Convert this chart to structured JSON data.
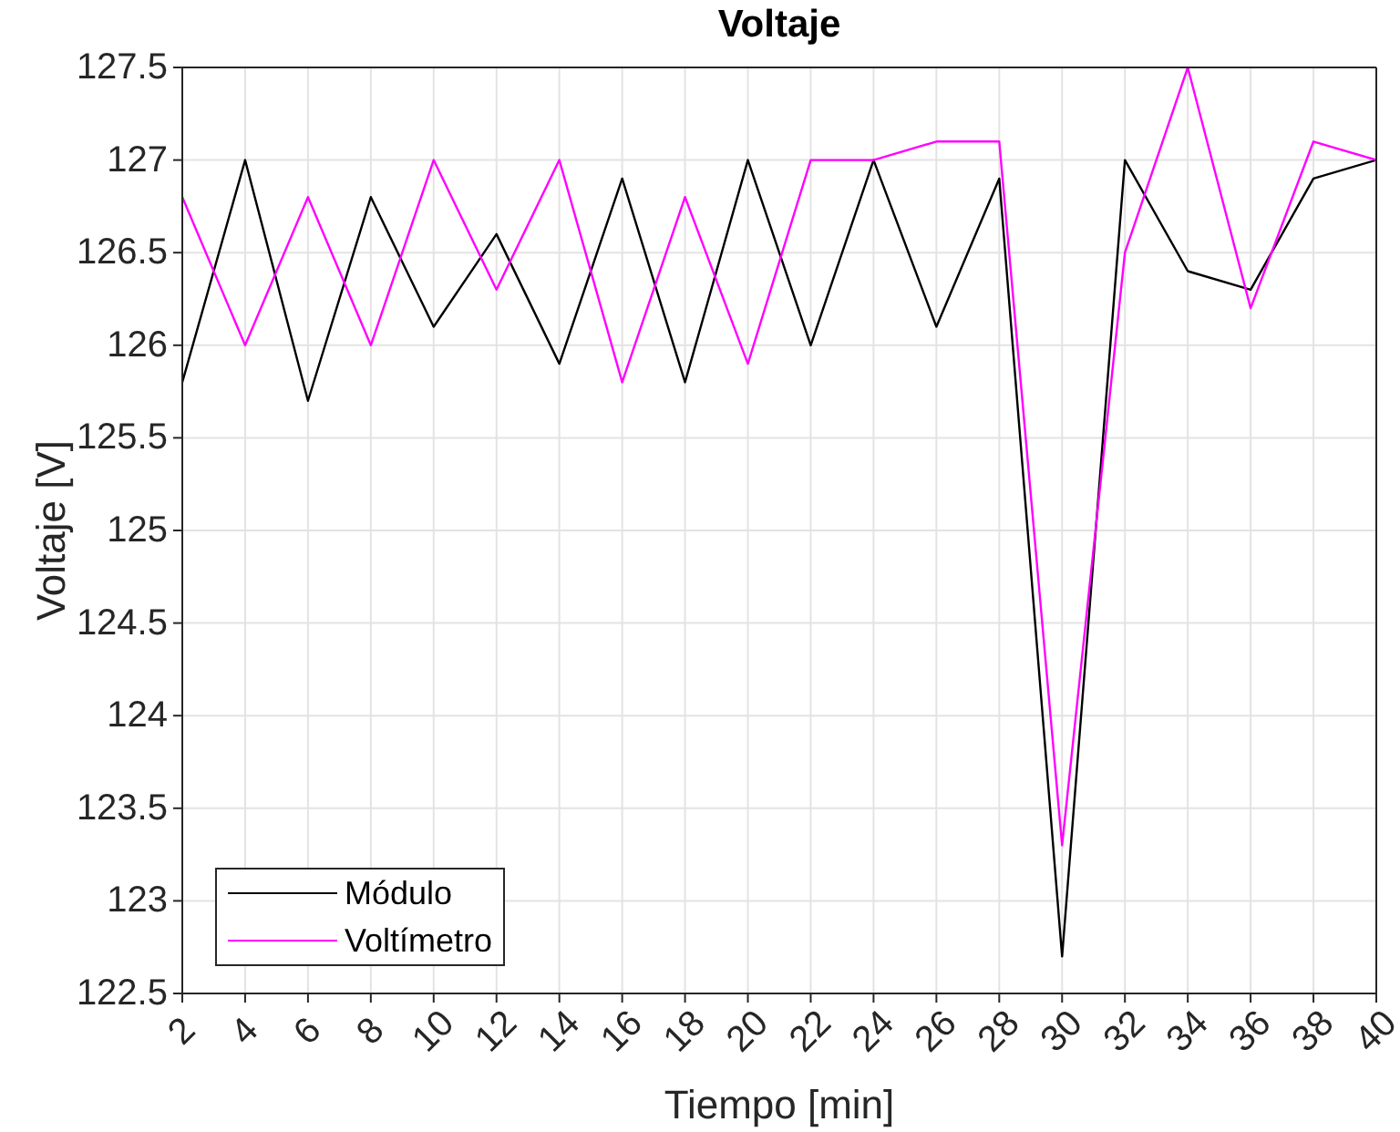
{
  "chart_data": {
    "type": "line",
    "title": "Voltaje",
    "xlabel": "Tiempo [min]",
    "ylabel": "Voltaje [V]",
    "x": [
      2,
      4,
      6,
      8,
      10,
      12,
      14,
      16,
      18,
      20,
      22,
      24,
      26,
      28,
      30,
      32,
      34,
      36,
      38,
      40
    ],
    "series": [
      {
        "name": "Módulo",
        "color": "#000000",
        "values": [
          125.8,
          127.0,
          125.7,
          126.8,
          126.1,
          126.6,
          125.9,
          126.9,
          125.8,
          127.0,
          126.0,
          127.0,
          126.1,
          126.9,
          122.7,
          127.0,
          126.4,
          126.3,
          126.9,
          127.0
        ]
      },
      {
        "name": "Voltímetro",
        "color": "#ff00ff",
        "values": [
          126.8,
          126.0,
          126.8,
          126.0,
          127.0,
          126.3,
          127.0,
          125.8,
          126.8,
          125.9,
          127.0,
          127.0,
          127.1,
          127.1,
          123.3,
          126.5,
          127.5,
          126.2,
          127.1,
          127.0
        ]
      }
    ],
    "xlim": [
      2,
      40
    ],
    "xticks": [
      2,
      4,
      6,
      8,
      10,
      12,
      14,
      16,
      18,
      20,
      22,
      24,
      26,
      28,
      30,
      32,
      34,
      36,
      38,
      40
    ],
    "ylim": [
      122.5,
      127.5
    ],
    "yticks": [
      122.5,
      123,
      123.5,
      124,
      124.5,
      125,
      125.5,
      126,
      126.5,
      127,
      127.5
    ],
    "grid": true,
    "legend": "bottom left"
  }
}
